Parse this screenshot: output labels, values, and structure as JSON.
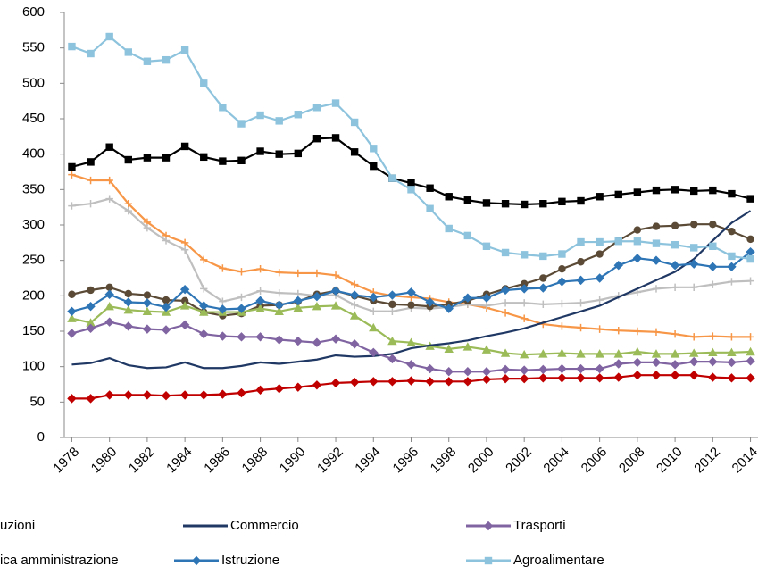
{
  "chart_data": {
    "type": "line",
    "x": [
      1978,
      1979,
      1980,
      1981,
      1982,
      1983,
      1984,
      1985,
      1986,
      1987,
      1988,
      1989,
      1990,
      1991,
      1992,
      1993,
      1994,
      1995,
      1996,
      1997,
      1998,
      1999,
      2000,
      2001,
      2002,
      2003,
      2004,
      2005,
      2006,
      2007,
      2008,
      2009,
      2010,
      2011,
      2012,
      2013,
      2014
    ],
    "xlim": [
      1977.6,
      2014.4
    ],
    "xticks": [
      1978,
      1980,
      1982,
      1984,
      1986,
      1988,
      1990,
      1992,
      1994,
      1996,
      1998,
      2000,
      2002,
      2004,
      2006,
      2008,
      2010,
      2012,
      2014
    ],
    "ylim": [
      0,
      600
    ],
    "yticks": [
      0,
      50,
      100,
      150,
      200,
      250,
      300,
      350,
      400,
      450,
      500,
      550,
      600
    ],
    "series": [
      {
        "color": "#000000",
        "marker": "square",
        "values": [
          382,
          389,
          410,
          392,
          395,
          395,
          411,
          396,
          390,
          391,
          404,
          400,
          401,
          422,
          423,
          403,
          383,
          366,
          359,
          352,
          340,
          335,
          331,
          330,
          329,
          330,
          333,
          334,
          340,
          343,
          346,
          349,
          350,
          348,
          349,
          344,
          337
        ]
      },
      {
        "color": "#f79646",
        "marker": "plus",
        "values": [
          371,
          363,
          363,
          330,
          304,
          285,
          275,
          251,
          239,
          234,
          238,
          233,
          232,
          232,
          229,
          216,
          205,
          200,
          198,
          196,
          191,
          188,
          183,
          176,
          168,
          160,
          157,
          155,
          153,
          151,
          150,
          149,
          146,
          142,
          143,
          142,
          142
        ]
      },
      {
        "color": "#bfbfbf",
        "marker": "plus",
        "values": [
          327,
          330,
          337,
          320,
          296,
          278,
          265,
          210,
          192,
          198,
          207,
          204,
          203,
          200,
          201,
          187,
          178,
          178,
          183,
          182,
          184,
          188,
          186,
          190,
          190,
          188,
          189,
          190,
          194,
          200,
          205,
          210,
          212,
          212,
          216,
          220,
          221
        ]
      },
      {
        "color": "#5a4a36",
        "marker": "circle",
        "values": [
          202,
          208,
          212,
          203,
          201,
          194,
          193,
          177,
          172,
          175,
          186,
          187,
          192,
          202,
          207,
          200,
          193,
          188,
          187,
          185,
          188,
          193,
          202,
          210,
          217,
          225,
          238,
          248,
          259,
          278,
          293,
          298,
          299,
          301,
          301,
          291,
          280
        ]
      },
      {
        "color": "#9bbb59",
        "marker": "triangle",
        "values": [
          168,
          162,
          185,
          180,
          178,
          177,
          186,
          177,
          177,
          177,
          182,
          178,
          183,
          185,
          186,
          172,
          155,
          136,
          134,
          129,
          125,
          128,
          124,
          119,
          117,
          118,
          119,
          118,
          118,
          118,
          121,
          118,
          118,
          119,
          120,
          120,
          121
        ]
      },
      {
        "color": "#c00000",
        "marker": "diamond",
        "values": [
          55,
          55,
          60,
          60,
          60,
          59,
          60,
          60,
          61,
          63,
          67,
          69,
          71,
          74,
          77,
          78,
          79,
          79,
          80,
          79,
          79,
          79,
          82,
          83,
          83,
          84,
          84,
          84,
          84,
          85,
          88,
          88,
          88,
          88,
          85,
          84,
          84
        ]
      },
      {
        "name": "Commercio",
        "color": "#1f3864",
        "marker": "none",
        "values": [
          103,
          105,
          112,
          102,
          98,
          99,
          106,
          98,
          98,
          101,
          106,
          104,
          107,
          110,
          116,
          114,
          115,
          118,
          126,
          130,
          133,
          137,
          143,
          148,
          154,
          162,
          170,
          178,
          186,
          198,
          210,
          222,
          234,
          252,
          278,
          303,
          320
        ]
      },
      {
        "name": "Trasporti",
        "color": "#8064a2",
        "marker": "diamond",
        "values": [
          147,
          154,
          163,
          157,
          153,
          152,
          159,
          146,
          143,
          142,
          142,
          138,
          136,
          134,
          139,
          132,
          120,
          111,
          103,
          97,
          93,
          93,
          93,
          96,
          95,
          96,
          97,
          97,
          97,
          104,
          106,
          106,
          103,
          107,
          107,
          106,
          108
        ]
      },
      {
        "name": "Istruzione",
        "color": "#2e75b6",
        "marker": "diamond",
        "values": [
          178,
          185,
          202,
          191,
          190,
          184,
          209,
          186,
          181,
          182,
          193,
          187,
          193,
          199,
          207,
          201,
          198,
          201,
          205,
          191,
          182,
          197,
          197,
          208,
          210,
          211,
          220,
          222,
          225,
          243,
          253,
          250,
          243,
          245,
          241,
          241,
          262
        ]
      },
      {
        "name": "Agroalimentare",
        "color": "#8dc3dd",
        "marker": "square",
        "values": [
          552,
          542,
          566,
          544,
          531,
          533,
          547,
          500,
          466,
          443,
          455,
          447,
          456,
          466,
          472,
          445,
          408,
          366,
          350,
          323,
          295,
          285,
          270,
          261,
          258,
          256,
          259,
          276,
          276,
          277,
          277,
          274,
          272,
          268,
          270,
          256,
          252
        ]
      }
    ],
    "legend_extra_labels": [
      "uzioni",
      "ica amministrazione"
    ]
  }
}
